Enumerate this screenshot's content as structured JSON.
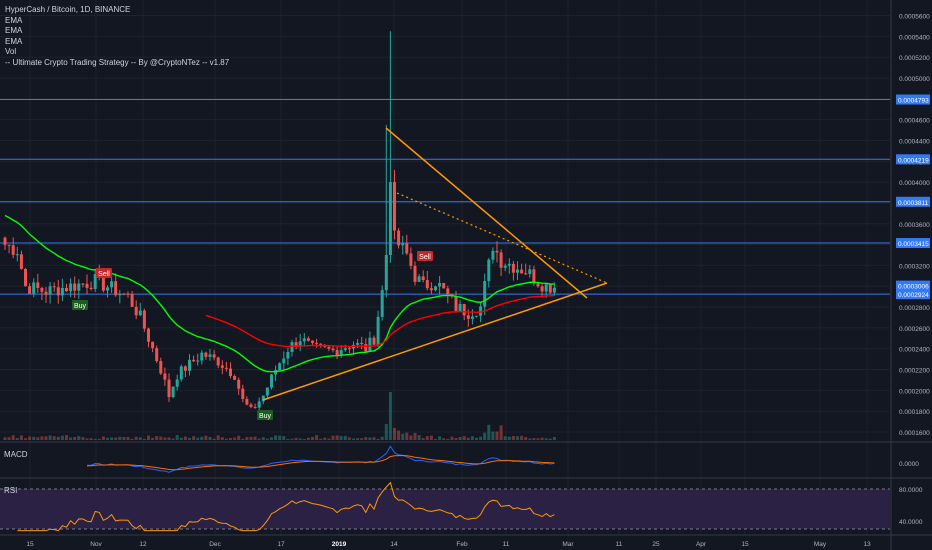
{
  "legend": {
    "title": "HyperCash / Bitcoin, 1D, BINANCE",
    "ind1": "EMA",
    "ind2": "EMA",
    "ind3": "EMA",
    "ind4": "Vol",
    "ind5": "-- Ultimate Crypto Trading Strategy -- By @CryptoNTez -- v1.87"
  },
  "panes": {
    "macd": "MACD",
    "rsi": "RSI"
  },
  "colors": {
    "background": "#131722",
    "up": "#26a69a",
    "down": "#ef5350",
    "ema_fast": "#00ff00",
    "ema_slow": "#ff0000",
    "hline": "#3179f5",
    "trendline": "#ff9800",
    "rsi": "#ff9800",
    "rsi_band": "#2a2144"
  },
  "chart_data": {
    "type": "candlestick",
    "title": "HyperCash / Bitcoin, 1D, BINANCE",
    "y_range": [
      0.00016,
      0.00056
    ],
    "y_ticks": [
      "0.0005600",
      "0.0005400",
      "0.0005200",
      "0.0005000",
      "0.0004800",
      "0.0004600",
      "0.0004400",
      "0.0004200",
      "0.0004000",
      "0.0003800",
      "0.0003600",
      "0.0003400",
      "0.0003200",
      "0.0003000",
      "0.0002800",
      "0.0002600",
      "0.0002400",
      "0.0002200",
      "0.0002000",
      "0.0001800",
      "0.0001600"
    ],
    "x_ticks": [
      "15",
      "Nov",
      "12",
      "Dec",
      "17",
      "2019",
      "14",
      "Feb",
      "11",
      "Mar",
      "11",
      "25",
      "Apr",
      "15",
      "May",
      "13"
    ],
    "horizontal_levels": [
      {
        "price": 0.0004793,
        "label": "0.0004793"
      },
      {
        "price": 0.0004219,
        "label": "0.0004219"
      },
      {
        "price": 0.0003811,
        "label": "0.0003811"
      },
      {
        "price": 0.0003415,
        "label": "0.0003415"
      },
      {
        "price": 0.0002924,
        "label": "0.0002924"
      }
    ],
    "last_price": {
      "price": 0.0003006,
      "label": "0.0003006"
    },
    "signals": [
      {
        "label": "Buy",
        "type": "buy"
      },
      {
        "label": "Sell",
        "type": "sell"
      },
      {
        "label": "Buy",
        "type": "buy"
      },
      {
        "label": "Sell",
        "type": "sell"
      }
    ],
    "macd": {
      "label": "MACD",
      "ticks": [
        "0.0000"
      ]
    },
    "rsi": {
      "label": "RSI",
      "ticks": [
        "80.0000",
        "40.0000"
      ]
    },
    "series": [
      {
        "name": "EMA fast",
        "type": "line"
      },
      {
        "name": "EMA slow",
        "type": "line"
      },
      {
        "name": "Vol",
        "type": "bar"
      }
    ]
  }
}
